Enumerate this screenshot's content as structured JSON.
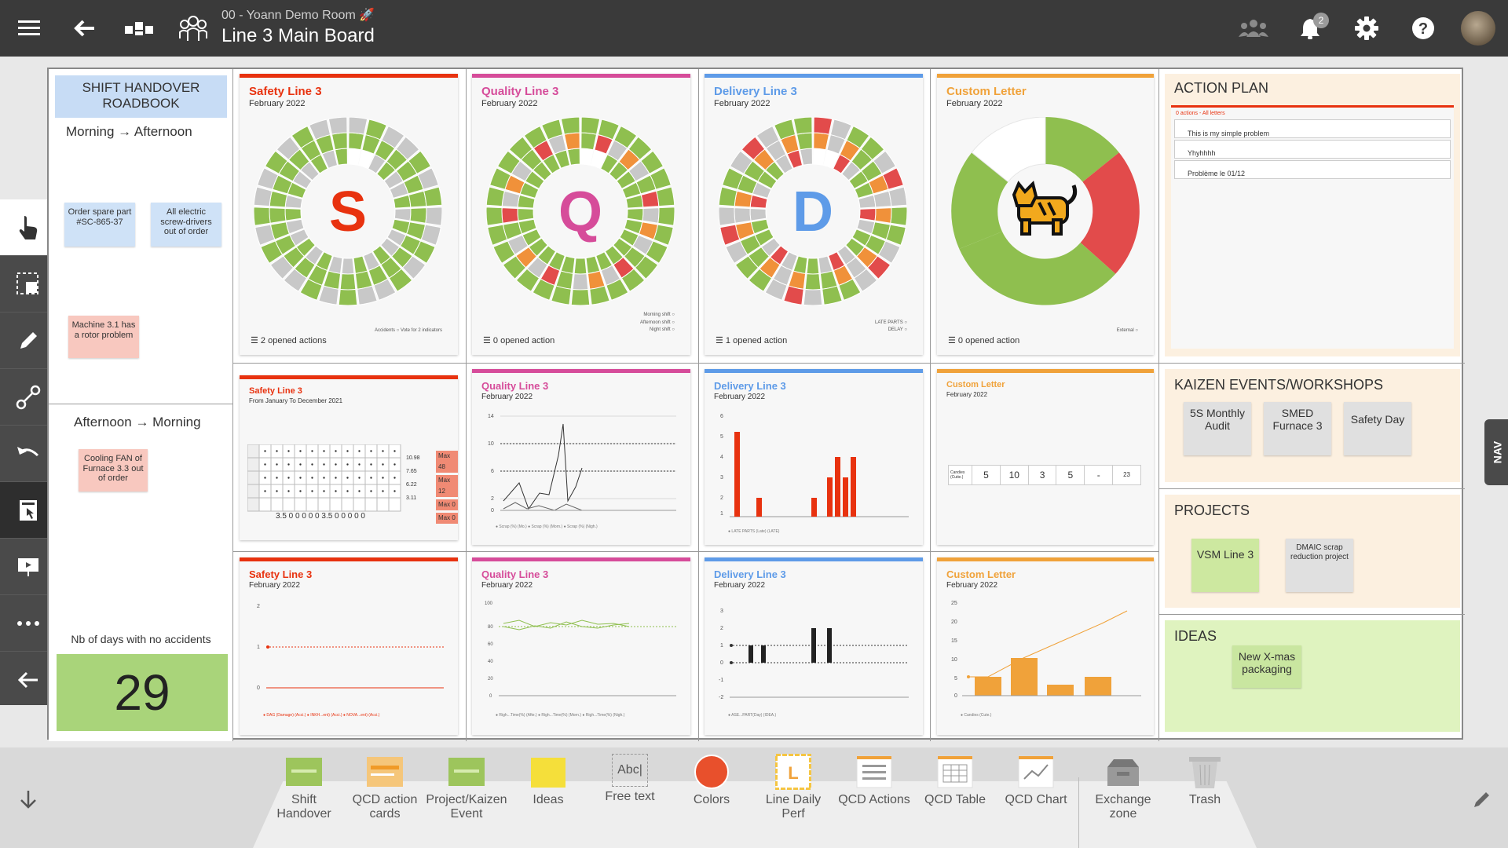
{
  "topbar": {
    "room": "00 - Yoann Demo Room 🚀",
    "title": "Line 3 Main Board",
    "notifications": "2"
  },
  "roadbook": {
    "title": "SHIFT HANDOVER ROADBOOK",
    "morning": "Morning → Afternoon",
    "afternoon": "Afternoon → Morning",
    "notes": [
      "Order spare part #SC-865-37",
      "All electric screw-drivers out of order",
      "Machine 3.1 has a rotor problem",
      "Cooling FAN of Furnace 3.3 out of order"
    ],
    "days_label": "Nb of days with no accidents",
    "days_value": "29"
  },
  "donuts": [
    {
      "title": "Safety Line 3",
      "sub": "February 2022",
      "letter": "S",
      "color": "#e8320f",
      "footer": "2 opened actions",
      "legend": [
        "Accidents",
        "Vote for 2 indicators"
      ]
    },
    {
      "title": "Quality Line 3",
      "sub": "February 2022",
      "letter": "Q",
      "color": "#d64c9a",
      "footer": "0 opened action",
      "legend": [
        "Morning shift",
        "Afternoon shift",
        "Night shift"
      ]
    },
    {
      "title": "Delivery Line 3",
      "sub": "February 2022",
      "letter": "D",
      "color": "#5e9be8",
      "footer": "1 opened action",
      "legend": [
        "LATE PARTS",
        "DELAY"
      ]
    },
    {
      "title": "Custom Letter",
      "sub": "February 2022",
      "letter": "",
      "color": "#f0a23a",
      "footer": "0 opened action",
      "legend": [
        "External"
      ]
    }
  ],
  "action_plan": {
    "title": "ACTION PLAN",
    "header": "0 actions - All letters",
    "items": [
      "This is my simple problem",
      "Yhyhhhh",
      "Problème le 01/12"
    ]
  },
  "kaizen": {
    "title": "KAIZEN EVENTS/WORKSHOPS",
    "items": [
      "5S Monthly Audit",
      "SMED Furnace 3",
      "Safety Day"
    ]
  },
  "projects": {
    "title": "PROJECTS",
    "items": [
      "VSM Line 3",
      "DMAIC scrap reduction project"
    ]
  },
  "ideas": {
    "title": "IDEAS",
    "items": [
      "New X-mas packaging"
    ]
  },
  "row2": [
    {
      "title": "Safety Line 3",
      "sub": "From January To December 2021",
      "color": "#e8320f",
      "max": [
        "Max 48",
        "Max 12",
        "Max 0",
        "Max 0"
      ],
      "vals": [
        "10.98",
        "7.65",
        "6.22",
        "3.11"
      ],
      "total": "3.5 0 0 0 0 0 3.5 0 0 0 0 0"
    },
    {
      "title": "Quality Line 3",
      "sub": "February 2022",
      "color": "#d64c9a"
    },
    {
      "title": "Delivery Line 3",
      "sub": "February 2022",
      "color": "#5e9be8"
    },
    {
      "title": "Custom Letter",
      "sub": "February 2022",
      "color": "#f0a23a",
      "values": [
        "5",
        "10",
        "3",
        "5",
        "-",
        "23"
      ]
    }
  ],
  "row3": [
    {
      "title": "Safety Line 3",
      "sub": "February 2022",
      "color": "#e8320f"
    },
    {
      "title": "Quality Line 3",
      "sub": "February 2022",
      "color": "#d64c9a"
    },
    {
      "title": "Delivery Line 3",
      "sub": "February 2022",
      "color": "#5e9be8"
    },
    {
      "title": "Custom Letter",
      "sub": "February 2022",
      "color": "#f0a23a"
    }
  ],
  "tools": [
    {
      "label": "Shift Handover",
      "icon": "shift-handover-icon"
    },
    {
      "label": "QCD action cards",
      "icon": "action-cards-icon"
    },
    {
      "label": "Project/Kaizen Event",
      "icon": "kaizen-icon"
    },
    {
      "label": "Ideas",
      "icon": "ideas-icon"
    },
    {
      "label": "Free text",
      "icon": "free-text-icon",
      "glyph": "Abc|"
    },
    {
      "label": "Colors",
      "icon": "colors-icon"
    },
    {
      "label": "Line Daily Perf",
      "icon": "line-daily-perf-icon",
      "glyph": "L"
    },
    {
      "label": "QCD Actions",
      "icon": "qcd-actions-icon"
    },
    {
      "label": "QCD Table",
      "icon": "qcd-table-icon"
    },
    {
      "label": "QCD Chart",
      "icon": "qcd-chart-icon"
    },
    {
      "label": "Exchange zone",
      "icon": "exchange-zone-icon"
    },
    {
      "label": "Trash",
      "icon": "trash-icon"
    }
  ],
  "nav": "NAV"
}
